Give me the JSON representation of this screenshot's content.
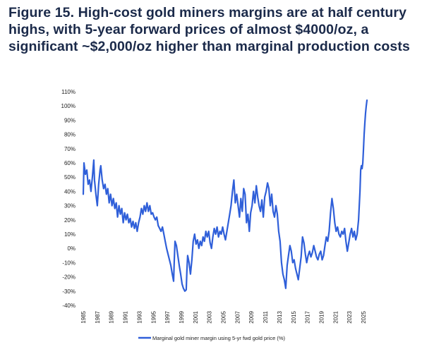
{
  "title": "Figure 15. High-cost gold miners margins are at half century highs, with 5-year forward prices of almost $4000/oz, a significant ~$2,000/oz higher than marginal production costs",
  "colors": {
    "title": "#1b2a4a",
    "series": "#2f5fd9"
  },
  "chart_data": {
    "type": "line",
    "xlabel": "",
    "ylabel": "",
    "xlim": [
      1985,
      2025.7
    ],
    "ylim": [
      -40,
      110
    ],
    "yticks": [
      -40,
      -30,
      -20,
      -10,
      0,
      10,
      20,
      30,
      40,
      50,
      60,
      70,
      80,
      90,
      100,
      110
    ],
    "ytick_labels": [
      "-40%",
      "-30%",
      "-20%",
      "-10%",
      "0%",
      "10%",
      "20%",
      "30%",
      "40%",
      "50%",
      "60%",
      "70%",
      "80%",
      "90%",
      "100%",
      "110%"
    ],
    "xticks": [
      "1985",
      "1987",
      "1989",
      "1991",
      "1993",
      "1995",
      "1997",
      "1999",
      "2001",
      "2003",
      "2005",
      "2007",
      "2009",
      "2011",
      "2013",
      "2015",
      "2017",
      "2019",
      "2021",
      "2023",
      "2025"
    ],
    "grid": false,
    "legend_position": "bottom-center",
    "series": [
      {
        "name": "Marginal gold miner margin using 5-yr fwd gold price (%)",
        "color": "#2f5fd9",
        "points": [
          [
            1985.0,
            38
          ],
          [
            1985.1,
            60
          ],
          [
            1985.3,
            52
          ],
          [
            1985.5,
            55
          ],
          [
            1985.7,
            45
          ],
          [
            1985.9,
            48
          ],
          [
            1986.1,
            40
          ],
          [
            1986.3,
            50
          ],
          [
            1986.5,
            62
          ],
          [
            1986.6,
            48
          ],
          [
            1986.8,
            38
          ],
          [
            1987.0,
            30
          ],
          [
            1987.2,
            45
          ],
          [
            1987.4,
            55
          ],
          [
            1987.5,
            58
          ],
          [
            1987.7,
            48
          ],
          [
            1987.9,
            42
          ],
          [
            1988.1,
            45
          ],
          [
            1988.3,
            38
          ],
          [
            1988.5,
            42
          ],
          [
            1988.7,
            32
          ],
          [
            1988.9,
            38
          ],
          [
            1989.1,
            30
          ],
          [
            1989.3,
            35
          ],
          [
            1989.5,
            28
          ],
          [
            1989.7,
            32
          ],
          [
            1989.9,
            22
          ],
          [
            1990.1,
            30
          ],
          [
            1990.3,
            24
          ],
          [
            1990.5,
            28
          ],
          [
            1990.7,
            18
          ],
          [
            1990.9,
            25
          ],
          [
            1991.1,
            20
          ],
          [
            1991.3,
            24
          ],
          [
            1991.5,
            18
          ],
          [
            1991.7,
            21
          ],
          [
            1991.9,
            15
          ],
          [
            1992.1,
            19
          ],
          [
            1992.3,
            14
          ],
          [
            1992.5,
            18
          ],
          [
            1992.7,
            12
          ],
          [
            1992.9,
            18
          ],
          [
            1993.1,
            22
          ],
          [
            1993.3,
            28
          ],
          [
            1993.5,
            24
          ],
          [
            1993.7,
            30
          ],
          [
            1993.9,
            26
          ],
          [
            1994.1,
            32
          ],
          [
            1994.3,
            26
          ],
          [
            1994.5,
            30
          ],
          [
            1994.7,
            24
          ],
          [
            1994.9,
            25
          ],
          [
            1995.1,
            22
          ],
          [
            1995.3,
            20
          ],
          [
            1995.5,
            22
          ],
          [
            1995.7,
            16
          ],
          [
            1995.9,
            14
          ],
          [
            1996.1,
            12
          ],
          [
            1996.3,
            15
          ],
          [
            1996.5,
            10
          ],
          [
            1996.7,
            5
          ],
          [
            1996.9,
            0
          ],
          [
            1997.1,
            -4
          ],
          [
            1997.3,
            -8
          ],
          [
            1997.5,
            -12
          ],
          [
            1997.7,
            -18
          ],
          [
            1997.9,
            -23
          ],
          [
            1998.0,
            -8
          ],
          [
            1998.1,
            5
          ],
          [
            1998.3,
            2
          ],
          [
            1998.5,
            -5
          ],
          [
            1998.7,
            -12
          ],
          [
            1998.9,
            -18
          ],
          [
            1999.1,
            -25
          ],
          [
            1999.3,
            -28
          ],
          [
            1999.5,
            -30
          ],
          [
            1999.7,
            -29
          ],
          [
            1999.8,
            -15
          ],
          [
            1999.9,
            -5
          ],
          [
            2000.1,
            -10
          ],
          [
            2000.3,
            -18
          ],
          [
            2000.5,
            -8
          ],
          [
            2000.7,
            5
          ],
          [
            2000.9,
            10
          ],
          [
            2001.1,
            3
          ],
          [
            2001.3,
            6
          ],
          [
            2001.5,
            0
          ],
          [
            2001.7,
            5
          ],
          [
            2001.9,
            2
          ],
          [
            2002.1,
            8
          ],
          [
            2002.3,
            5
          ],
          [
            2002.5,
            12
          ],
          [
            2002.7,
            8
          ],
          [
            2002.9,
            12
          ],
          [
            2003.1,
            4
          ],
          [
            2003.3,
            0
          ],
          [
            2003.5,
            8
          ],
          [
            2003.7,
            14
          ],
          [
            2003.9,
            10
          ],
          [
            2004.1,
            15
          ],
          [
            2004.3,
            8
          ],
          [
            2004.5,
            12
          ],
          [
            2004.7,
            10
          ],
          [
            2004.9,
            15
          ],
          [
            2005.1,
            10
          ],
          [
            2005.3,
            6
          ],
          [
            2005.5,
            12
          ],
          [
            2005.7,
            18
          ],
          [
            2005.9,
            24
          ],
          [
            2006.1,
            30
          ],
          [
            2006.3,
            40
          ],
          [
            2006.5,
            48
          ],
          [
            2006.7,
            32
          ],
          [
            2006.9,
            38
          ],
          [
            2007.1,
            30
          ],
          [
            2007.3,
            22
          ],
          [
            2007.5,
            35
          ],
          [
            2007.7,
            26
          ],
          [
            2007.9,
            42
          ],
          [
            2008.1,
            38
          ],
          [
            2008.3,
            18
          ],
          [
            2008.5,
            24
          ],
          [
            2008.7,
            12
          ],
          [
            2008.9,
            25
          ],
          [
            2009.1,
            30
          ],
          [
            2009.3,
            40
          ],
          [
            2009.5,
            32
          ],
          [
            2009.7,
            44
          ],
          [
            2009.9,
            36
          ],
          [
            2010.1,
            30
          ],
          [
            2010.3,
            26
          ],
          [
            2010.5,
            34
          ],
          [
            2010.7,
            22
          ],
          [
            2010.9,
            36
          ],
          [
            2011.1,
            40
          ],
          [
            2011.3,
            46
          ],
          [
            2011.5,
            42
          ],
          [
            2011.7,
            30
          ],
          [
            2011.9,
            38
          ],
          [
            2012.1,
            26
          ],
          [
            2012.3,
            22
          ],
          [
            2012.5,
            30
          ],
          [
            2012.7,
            24
          ],
          [
            2012.9,
            12
          ],
          [
            2013.1,
            5
          ],
          [
            2013.3,
            -10
          ],
          [
            2013.5,
            -18
          ],
          [
            2013.7,
            -22
          ],
          [
            2013.9,
            -28
          ],
          [
            2014.1,
            -12
          ],
          [
            2014.3,
            -5
          ],
          [
            2014.5,
            2
          ],
          [
            2014.7,
            -2
          ],
          [
            2014.9,
            -10
          ],
          [
            2015.1,
            -8
          ],
          [
            2015.3,
            -14
          ],
          [
            2015.5,
            -18
          ],
          [
            2015.7,
            -22
          ],
          [
            2015.9,
            -14
          ],
          [
            2016.1,
            -6
          ],
          [
            2016.3,
            8
          ],
          [
            2016.5,
            4
          ],
          [
            2016.7,
            -4
          ],
          [
            2016.9,
            -10
          ],
          [
            2017.1,
            -5
          ],
          [
            2017.3,
            -2
          ],
          [
            2017.5,
            -6
          ],
          [
            2017.7,
            -3
          ],
          [
            2017.9,
            2
          ],
          [
            2018.1,
            -2
          ],
          [
            2018.3,
            -6
          ],
          [
            2018.5,
            -8
          ],
          [
            2018.7,
            -4
          ],
          [
            2018.9,
            -2
          ],
          [
            2019.1,
            -8
          ],
          [
            2019.3,
            -5
          ],
          [
            2019.5,
            2
          ],
          [
            2019.7,
            8
          ],
          [
            2019.9,
            5
          ],
          [
            2020.1,
            12
          ],
          [
            2020.3,
            25
          ],
          [
            2020.5,
            35
          ],
          [
            2020.7,
            28
          ],
          [
            2020.9,
            18
          ],
          [
            2021.1,
            12
          ],
          [
            2021.3,
            15
          ],
          [
            2021.5,
            10
          ],
          [
            2021.7,
            8
          ],
          [
            2021.9,
            12
          ],
          [
            2022.1,
            10
          ],
          [
            2022.3,
            14
          ],
          [
            2022.5,
            5
          ],
          [
            2022.7,
            -2
          ],
          [
            2022.9,
            4
          ],
          [
            2023.1,
            10
          ],
          [
            2023.3,
            14
          ],
          [
            2023.5,
            8
          ],
          [
            2023.7,
            12
          ],
          [
            2023.9,
            6
          ],
          [
            2024.1,
            10
          ],
          [
            2024.3,
            20
          ],
          [
            2024.5,
            40
          ],
          [
            2024.6,
            55
          ],
          [
            2024.7,
            58
          ],
          [
            2024.8,
            56
          ],
          [
            2024.9,
            60
          ],
          [
            2025.0,
            70
          ],
          [
            2025.1,
            80
          ],
          [
            2025.2,
            88
          ],
          [
            2025.3,
            95
          ],
          [
            2025.4,
            100
          ],
          [
            2025.5,
            104
          ]
        ]
      }
    ]
  }
}
